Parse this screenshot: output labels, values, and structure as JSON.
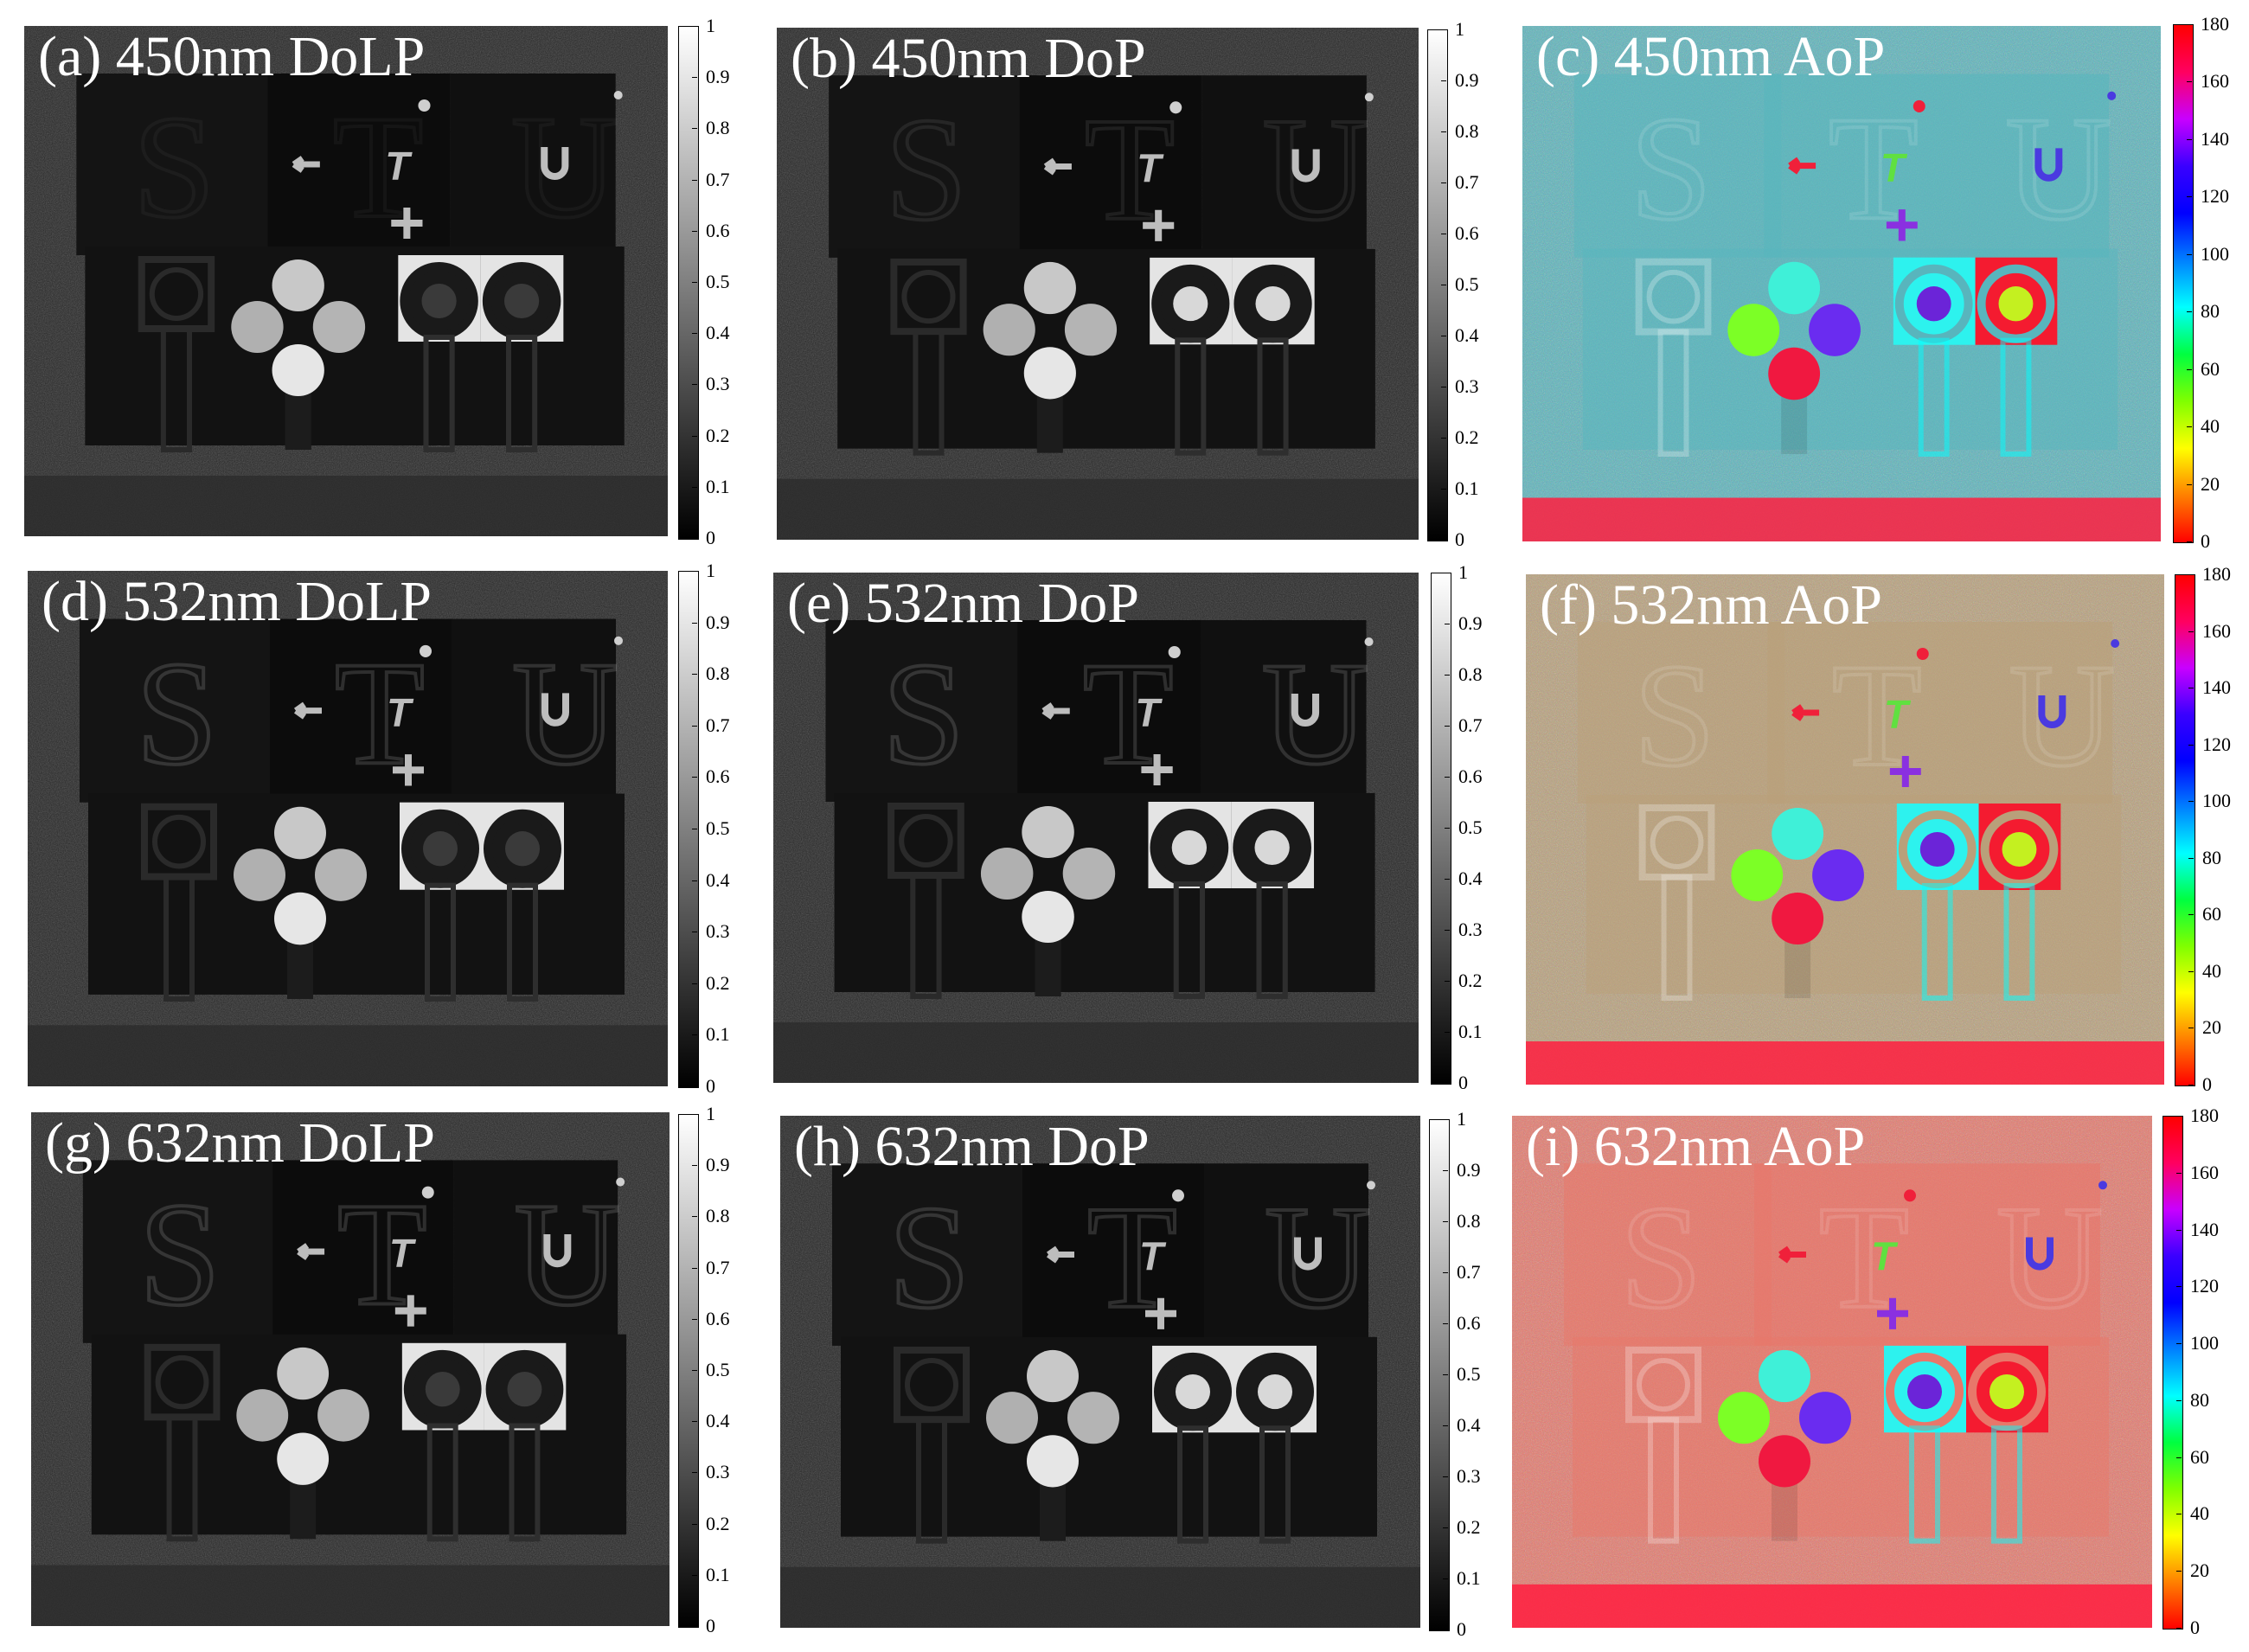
{
  "figure": {
    "panels": [
      {
        "id": "a",
        "label": "(a) 450nm DoLP",
        "mode": "gray",
        "text_level": "none"
      },
      {
        "id": "b",
        "label": "(b) 450nm DoP",
        "mode": "gray",
        "text_level": "faint"
      },
      {
        "id": "c",
        "label": "(c) 450nm AoP",
        "mode": "aop",
        "bg": "#58b5bd"
      },
      {
        "id": "d",
        "label": "(d) 532nm DoLP",
        "mode": "gray",
        "text_level": "mid"
      },
      {
        "id": "e",
        "label": "(e) 532nm DoP",
        "mode": "gray",
        "text_level": "mid"
      },
      {
        "id": "f",
        "label": "(f) 532nm AoP",
        "mode": "aop",
        "bg": "#b9a07a"
      },
      {
        "id": "g",
        "label": "(g) 632nm DoLP",
        "mode": "gray",
        "text_level": "mid"
      },
      {
        "id": "h",
        "label": "(h) 632nm DoP",
        "mode": "gray",
        "text_level": "mid"
      },
      {
        "id": "i",
        "label": "(i) 632nm AoP",
        "mode": "aop",
        "bg": "#e8776a"
      }
    ],
    "dolp_scale": {
      "ticks": [
        "1",
        "0.9",
        "0.8",
        "0.7",
        "0.6",
        "0.5",
        "0.4",
        "0.3",
        "0.2",
        "0.1",
        "0"
      ],
      "colors": [
        "#ffffff",
        "#000000"
      ]
    },
    "aop_scale": {
      "ticks": [
        "180",
        "160",
        "140",
        "120",
        "100",
        "80",
        "60",
        "40",
        "20",
        "0"
      ],
      "colors": [
        "#ff0000",
        "#ff0060",
        "#c800ff",
        "#3a00ff",
        "#0000ff",
        "#0080ff",
        "#00ffff",
        "#00ff40",
        "#80ff00",
        "#ffff00",
        "#ff8000",
        "#ff0000"
      ]
    },
    "aop_object_colors": {
      "top_disc": "#3ff0d8",
      "left_disc": "#7cff26",
      "right_disc": "#6a2cf0",
      "bottom_disc": "#f01840",
      "cyan_plate": "#2df2ee",
      "red_plate": "#f41b30",
      "purple_ring": "#6b24d8",
      "yellow_ring": "#c4f020",
      "arrow": "#f0203a",
      "t_shape": "#60e040",
      "cross": "#8a30e0",
      "u_shape": "#4a3ae0",
      "bottom_strip": "#ff1e40"
    }
  }
}
